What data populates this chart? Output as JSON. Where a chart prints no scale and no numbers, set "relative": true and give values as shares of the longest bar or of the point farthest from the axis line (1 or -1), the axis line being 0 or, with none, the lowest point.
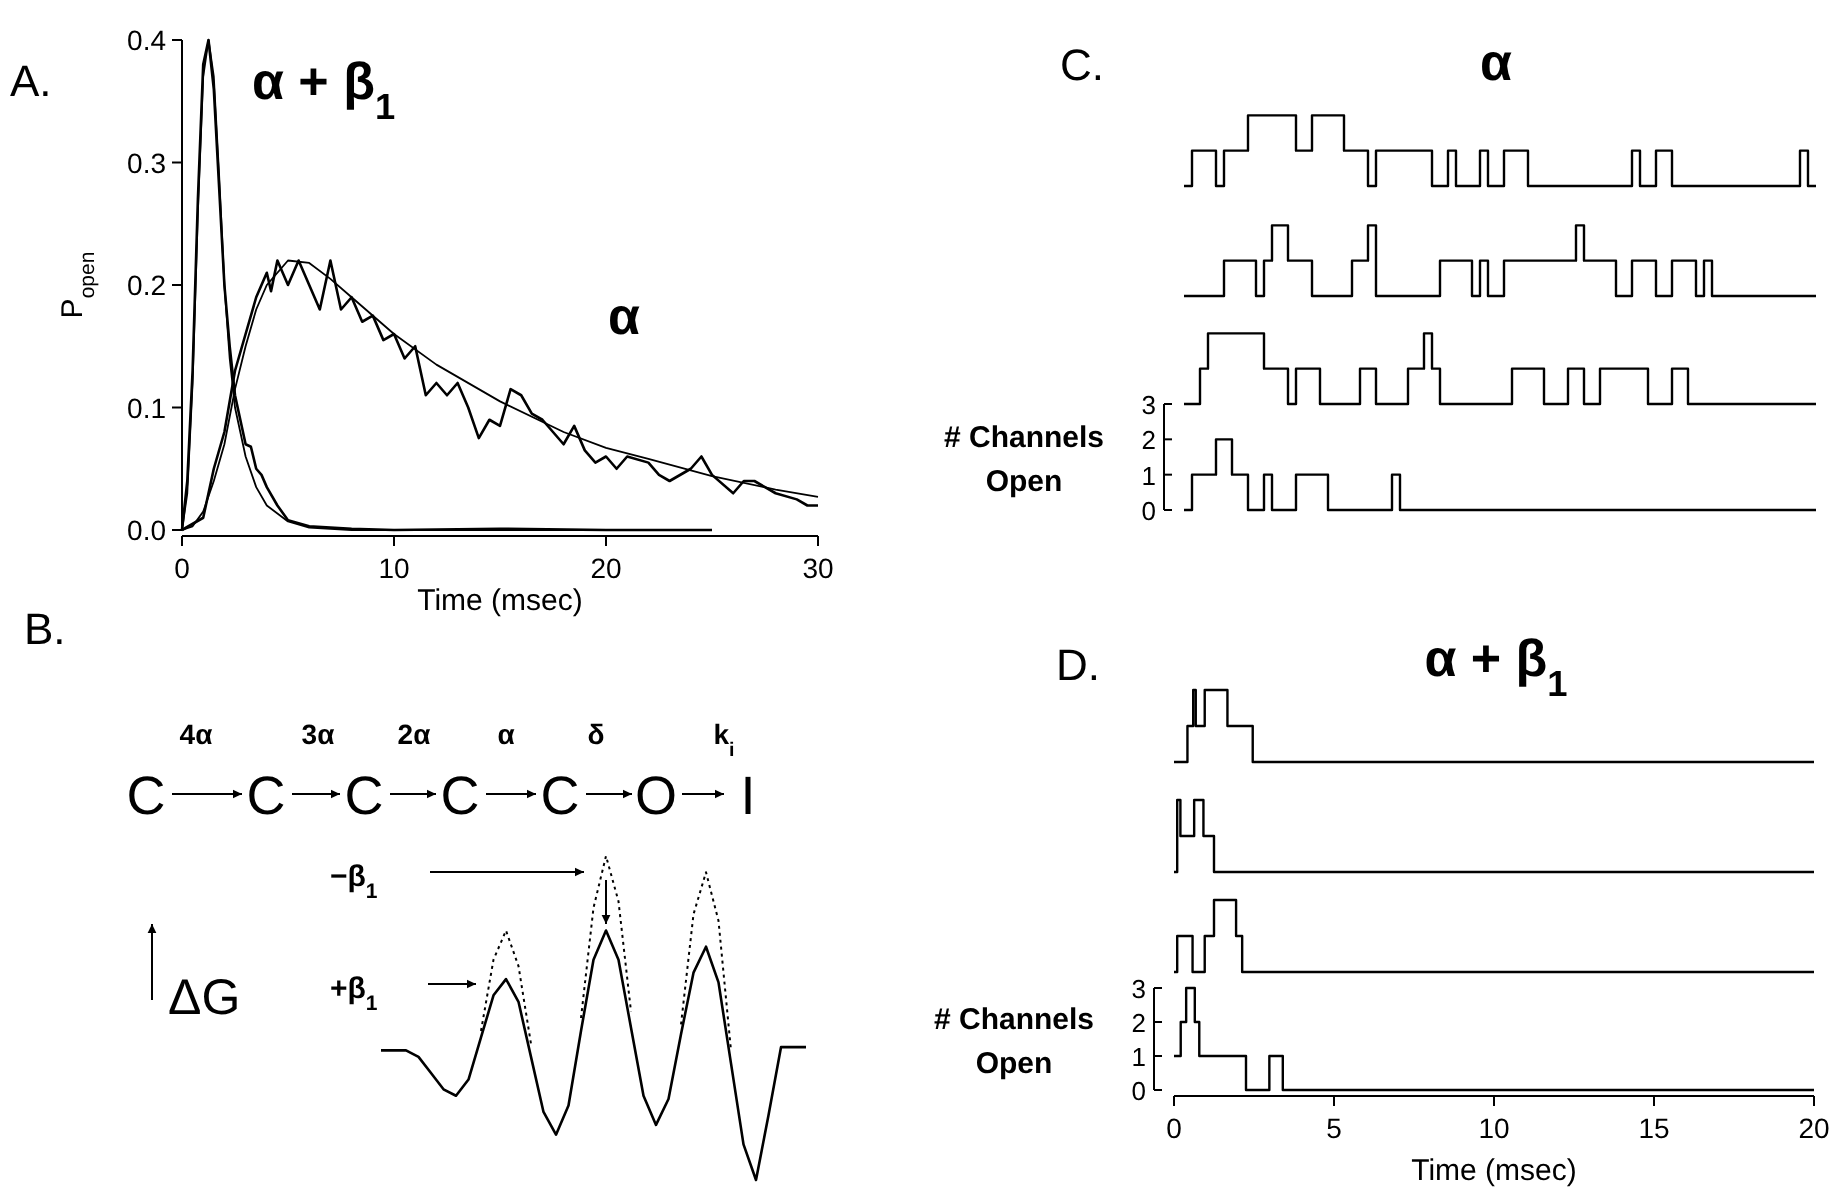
{
  "chart_data": [
    {
      "type": "line",
      "title": "A.",
      "xlabel": "Time (msec)",
      "ylabel": "P$_{open}$",
      "xlim": [
        0,
        30
      ],
      "ylim": [
        0,
        0.4
      ],
      "xticks": [
        0,
        10,
        20,
        30
      ],
      "yticks": [
        {
          "value": 0,
          "label": "0.0"
        },
        0.1,
        0.2,
        0.3,
        0.4
      ],
      "series": [
        {
          "name": "α + β$_{1}$",
          "color": "#000000",
          "x": [
            0,
            0.25,
            0.5,
            0.75,
            1,
            1.25,
            1.5,
            1.75,
            2,
            2.25,
            2.5,
            2.75,
            3,
            3.25,
            3.5,
            3.75,
            4,
            4.5,
            5,
            6,
            8,
            10,
            15,
            20,
            25
          ],
          "values": [
            0,
            0.04,
            0.13,
            0.27,
            0.38,
            0.4,
            0.36,
            0.28,
            0.2,
            0.15,
            0.11,
            0.09,
            0.07,
            0.068,
            0.05,
            0.045,
            0.035,
            0.02,
            0.008,
            0.003,
            0.001,
            0,
            0.001,
            0,
            0
          ]
        },
        {
          "color": "#000000",
          "x": [
            0,
            0.25,
            0.5,
            0.75,
            1,
            1.25,
            1.5,
            1.75,
            2,
            2.25,
            2.5,
            3,
            3.5,
            4,
            5,
            6,
            8,
            25
          ],
          "values": [
            0,
            0.03,
            0.12,
            0.26,
            0.37,
            0.4,
            0.37,
            0.29,
            0.2,
            0.14,
            0.1,
            0.06,
            0.035,
            0.02,
            0.007,
            0.002,
            0,
            0
          ]
        },
        {
          "name": "α",
          "color": "#000000",
          "x": [
            0,
            1,
            1.5,
            2,
            2.5,
            3,
            3.5,
            4,
            4.2,
            4.5,
            5,
            5.5,
            6,
            6.5,
            7,
            7.5,
            8,
            8.5,
            9,
            9.5,
            10,
            10.5,
            11,
            11.5,
            12,
            12.5,
            13,
            13.5,
            14,
            14.5,
            15,
            15.5,
            16,
            16.5,
            17,
            17.5,
            18,
            18.5,
            19,
            19.5,
            20,
            20.5,
            21,
            22,
            22.5,
            23,
            24,
            24.5,
            25,
            26,
            26.5,
            27,
            27.5,
            28,
            29,
            29.5,
            30
          ],
          "values": [
            0,
            0.01,
            0.05,
            0.08,
            0.13,
            0.16,
            0.19,
            0.21,
            0.195,
            0.22,
            0.2,
            0.22,
            0.2,
            0.18,
            0.22,
            0.18,
            0.19,
            0.17,
            0.175,
            0.155,
            0.16,
            0.14,
            0.15,
            0.11,
            0.12,
            0.11,
            0.12,
            0.1,
            0.075,
            0.09,
            0.085,
            0.115,
            0.11,
            0.095,
            0.09,
            0.08,
            0.07,
            0.085,
            0.065,
            0.055,
            0.06,
            0.05,
            0.06,
            0.055,
            0.045,
            0.04,
            0.05,
            0.06,
            0.045,
            0.03,
            0.04,
            0.04,
            0.035,
            0.03,
            0.025,
            0.02,
            0.02
          ]
        },
        {
          "color": "#000000",
          "x": [
            0,
            0.5,
            1,
            1.5,
            2,
            2.5,
            3,
            3.5,
            4,
            5,
            6,
            7,
            8,
            10,
            12,
            15,
            18,
            20,
            22,
            25,
            28,
            30
          ],
          "values": [
            0,
            0.003,
            0.015,
            0.04,
            0.07,
            0.115,
            0.15,
            0.18,
            0.2,
            0.22,
            0.218,
            0.205,
            0.19,
            0.16,
            0.135,
            0.105,
            0.08,
            0.067,
            0.058,
            0.044,
            0.033,
            0.027
          ]
        }
      ]
    },
    {
      "type": "other",
      "title": "B.",
      "annotations": [
        "C",
        "C",
        "C",
        "C",
        "C",
        "O",
        "I",
        "4α",
        "3α",
        "2α",
        "α",
        "δ",
        "k$_{i}$",
        "−β$_{1}$",
        "+β$_{1}$",
        "ΔG"
      ]
    },
    {
      "type": "line",
      "relative": true,
      "categories": [
        null,
        null,
        null,
        null,
        null,
        null,
        null,
        null,
        null,
        null,
        null,
        null,
        null,
        null,
        null,
        null,
        null,
        null,
        null,
        null,
        null,
        null,
        null,
        null,
        null,
        null,
        null,
        null,
        null,
        null,
        null,
        null,
        null,
        null,
        null
      ],
      "series": [
        {
          "color": "#000000",
          "values": [
            0.4,
            0.4,
            0.4,
            0.38,
            0.33,
            0.28,
            0.26,
            0.31,
            0.44,
            0.57,
            0.62,
            0.55,
            0.38,
            0.21,
            0.14,
            0.23,
            0.46,
            0.68,
            0.77,
            0.68,
            0.47,
            0.26,
            0.17,
            0.25,
            0.45,
            0.64,
            0.72,
            0.61,
            0.36,
            0.11,
            0,
            0.2,
            0.41,
            0.41,
            0.41
          ]
        },
        {
          "color": "#000000",
          "line_style": "dotted",
          "values": [
            null,
            null,
            null,
            null,
            null,
            null,
            null,
            null,
            0.46,
            0.68,
            0.77,
            0.66,
            0.42,
            null,
            null,
            null,
            0.5,
            0.84,
            1,
            0.86,
            0.52,
            null,
            null,
            null,
            0.48,
            0.82,
            0.95,
            0.8,
            0.4,
            null,
            null,
            null,
            null,
            null,
            null
          ]
        }
      ]
    },
    {
      "type": "step",
      "relative": true,
      "title": "C.",
      "subtitle": "α",
      "categories": [
        null,
        null,
        null,
        null,
        null,
        null,
        null,
        null,
        null,
        null,
        null,
        null,
        null,
        null,
        null,
        null,
        null,
        null,
        null,
        null,
        null,
        null,
        null,
        null,
        null,
        null,
        null,
        null,
        null,
        null,
        null,
        null,
        null,
        null,
        null,
        null,
        null,
        null,
        null,
        null,
        null,
        null,
        null,
        null,
        null,
        null,
        null,
        null,
        null,
        null,
        null,
        null,
        null,
        null,
        null,
        null,
        null,
        null,
        null,
        null,
        null,
        null,
        null,
        null,
        null,
        null,
        null,
        null,
        null,
        null,
        null,
        null,
        null,
        null,
        null,
        null,
        null,
        null,
        null,
        null
      ],
      "color": "#000000",
      "values": [
        0,
        0.5,
        0.5,
        0.5,
        0,
        0.5,
        0.5,
        0.5,
        1,
        1,
        1,
        1,
        1,
        1,
        0.5,
        0.5,
        1,
        1,
        1,
        1,
        0.5,
        0.5,
        0.5,
        0,
        0.5,
        0.5,
        0.5,
        0.5,
        0.5,
        0.5,
        0.5,
        0,
        0,
        0.5,
        0,
        0,
        0,
        0.5,
        0,
        0,
        0.5,
        0.5,
        0.5,
        0,
        0,
        0,
        0,
        0,
        0,
        0,
        0,
        0,
        0,
        0,
        0,
        0,
        0.5,
        0,
        0,
        0.5,
        0.5,
        0,
        0,
        0,
        0,
        0,
        0,
        0,
        0,
        0,
        0,
        0,
        0,
        0,
        0,
        0,
        0,
        0.5,
        0,
        0
      ]
    },
    {
      "type": "step",
      "relative": true,
      "categories": [
        null,
        null,
        null,
        null,
        null,
        null,
        null,
        null,
        null,
        null,
        null,
        null,
        null,
        null,
        null,
        null,
        null,
        null,
        null,
        null,
        null,
        null,
        null,
        null,
        null,
        null,
        null,
        null,
        null,
        null,
        null,
        null,
        null,
        null,
        null,
        null,
        null,
        null,
        null,
        null,
        null,
        null,
        null,
        null,
        null,
        null,
        null,
        null,
        null,
        null,
        null,
        null,
        null,
        null,
        null,
        null,
        null,
        null,
        null,
        null,
        null,
        null,
        null,
        null,
        null,
        null,
        null,
        null,
        null,
        null,
        null,
        null,
        null,
        null,
        null,
        null,
        null,
        null,
        null,
        null
      ],
      "color": "#000000",
      "values": [
        0,
        0,
        0,
        0,
        0,
        0.5,
        0.5,
        0.5,
        0.5,
        0,
        0.5,
        1,
        1,
        0.5,
        0.5,
        0.5,
        0,
        0,
        0,
        0,
        0,
        0.5,
        0.5,
        1,
        0,
        0,
        0,
        0,
        0,
        0,
        0,
        0,
        0.5,
        0.5,
        0.5,
        0.5,
        0,
        0.5,
        0,
        0,
        0.5,
        0.5,
        0.5,
        0.5,
        0.5,
        0.5,
        0.5,
        0.5,
        0.5,
        1,
        0.5,
        0.5,
        0.5,
        0.5,
        0,
        0,
        0.5,
        0.5,
        0.5,
        0,
        0,
        0.5,
        0.5,
        0.5,
        0,
        0.5,
        0,
        0,
        0,
        0,
        0,
        0,
        0,
        0,
        0,
        0,
        0,
        0,
        0,
        0
      ]
    },
    {
      "type": "step",
      "relative": true,
      "categories": [
        null,
        null,
        null,
        null,
        null,
        null,
        null,
        null,
        null,
        null,
        null,
        null,
        null,
        null,
        null,
        null,
        null,
        null,
        null,
        null,
        null,
        null,
        null,
        null,
        null,
        null,
        null,
        null,
        null,
        null,
        null,
        null,
        null,
        null,
        null,
        null,
        null,
        null,
        null,
        null,
        null,
        null,
        null,
        null,
        null,
        null,
        null,
        null,
        null,
        null,
        null,
        null,
        null,
        null,
        null,
        null,
        null,
        null,
        null,
        null,
        null,
        null,
        null,
        null,
        null,
        null,
        null,
        null,
        null,
        null,
        null,
        null,
        null,
        null,
        null,
        null,
        null,
        null,
        null,
        null
      ],
      "color": "#000000",
      "values": [
        0,
        0,
        0.5,
        1,
        1,
        1,
        1,
        1,
        1,
        1,
        0.5,
        0.5,
        0.5,
        0,
        0.5,
        0.5,
        0.5,
        0,
        0,
        0,
        0,
        0,
        0.5,
        0.5,
        0,
        0,
        0,
        0,
        0.5,
        0.5,
        1,
        0.5,
        0,
        0,
        0,
        0,
        0,
        0,
        0,
        0,
        0,
        0.5,
        0.5,
        0.5,
        0.5,
        0,
        0,
        0,
        0.5,
        0.5,
        0,
        0,
        0.5,
        0.5,
        0.5,
        0.5,
        0.5,
        0.5,
        0,
        0,
        0,
        0.5,
        0.5,
        0,
        0,
        0,
        0,
        0,
        0,
        0,
        0,
        0,
        0,
        0,
        0,
        0,
        0,
        0,
        0,
        0
      ]
    },
    {
      "type": "step",
      "ylabel": "# Channels Open",
      "categories": [
        null,
        null,
        null,
        null,
        null,
        null,
        null,
        null,
        null,
        null,
        null,
        null,
        null,
        null,
        null,
        null,
        null,
        null,
        null,
        null,
        null,
        null,
        null,
        null,
        null,
        null,
        null,
        null,
        null,
        null,
        null,
        null,
        null,
        null,
        null,
        null,
        null,
        null,
        null,
        null,
        null,
        null,
        null,
        null,
        null,
        null,
        null,
        null,
        null,
        null,
        null,
        null,
        null,
        null,
        null,
        null,
        null,
        null,
        null,
        null,
        null,
        null,
        null,
        null,
        null,
        null,
        null,
        null,
        null,
        null,
        null,
        null,
        null,
        null,
        null,
        null,
        null,
        null,
        null,
        null
      ],
      "color": "#000000",
      "ylim": [
        0,
        3
      ],
      "yticks": [
        0,
        1,
        2,
        3
      ],
      "values": [
        0,
        1,
        1,
        1,
        2,
        2,
        1,
        1,
        0,
        0,
        1,
        0,
        0,
        0,
        1,
        1,
        1,
        1,
        0,
        0,
        0,
        0,
        0,
        0,
        0,
        0,
        1,
        0,
        0,
        0,
        0,
        0,
        0,
        0,
        0,
        0,
        0,
        0,
        0,
        0,
        0,
        0,
        0,
        0,
        0,
        0,
        0,
        0,
        0,
        0,
        0,
        0,
        0,
        0,
        0,
        0,
        0,
        0,
        0,
        0,
        0,
        0,
        0,
        0,
        0,
        0,
        0,
        0,
        0,
        0,
        0,
        0,
        0,
        0,
        0,
        0,
        0,
        0,
        0,
        0
      ]
    },
    {
      "type": "step",
      "relative": true,
      "title": "D.",
      "subtitle": "α + β$_{1}$",
      "x": [
        0,
        0.42,
        0.6,
        0.68,
        0.96,
        1.67,
        2.46,
        20
      ],
      "values": [
        0,
        0.5,
        1,
        0.5,
        1,
        0.5,
        0,
        0
      ],
      "color": "#000000",
      "xlim": [
        0,
        20
      ]
    },
    {
      "type": "step",
      "relative": true,
      "x": [
        0,
        0.1,
        0.2,
        0.63,
        0.92,
        1.25,
        20
      ],
      "values": [
        0,
        1,
        0.5,
        1,
        0.5,
        0,
        0
      ],
      "color": "#000000",
      "xlim": [
        0,
        20
      ]
    },
    {
      "type": "step",
      "relative": true,
      "x": [
        0,
        0.1,
        0.58,
        0.96,
        1.25,
        1.94,
        2.13,
        20
      ],
      "values": [
        0,
        0.5,
        0,
        0.5,
        1,
        0.5,
        0,
        0
      ],
      "color": "#000000",
      "xlim": [
        0,
        20
      ]
    },
    {
      "type": "step",
      "xlabel": "Time (msec)",
      "ylabel": "# Channels Open",
      "x": [
        0,
        0.21,
        0.38,
        0.65,
        0.79,
        2.25,
        2.98,
        3.4,
        20
      ],
      "values": [
        1,
        2,
        3,
        2,
        1,
        0,
        1,
        0,
        0
      ],
      "color": "#000000",
      "xlim": [
        0,
        20
      ],
      "ylim": [
        0,
        3
      ],
      "xticks": [
        0,
        5,
        10,
        15,
        20
      ],
      "yticks": [
        0,
        1,
        2,
        3
      ]
    }
  ]
}
